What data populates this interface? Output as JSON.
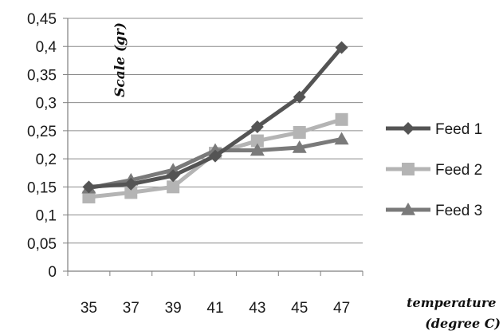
{
  "chart_data": {
    "type": "line",
    "title": "",
    "xlabel": "temperature (degree C)",
    "xlabel_lines": [
      "temperature",
      "(degree C)"
    ],
    "ylabel": "Scale (gr)",
    "x": [
      35,
      37,
      39,
      41,
      43,
      45,
      47
    ],
    "x_tick_labels": [
      "35",
      "37",
      "39",
      "41",
      "43",
      "45",
      "47"
    ],
    "ylim": [
      0,
      0.45
    ],
    "y_ticks": [
      0,
      0.05,
      0.1,
      0.15,
      0.2,
      0.25,
      0.3,
      0.35,
      0.4,
      0.45
    ],
    "y_tick_labels": [
      "0",
      "0,05",
      "0,1",
      "0,15",
      "0,2",
      "0,25",
      "0,3",
      "0,35",
      "0,4",
      "0,45"
    ],
    "grid": "horizontal",
    "legend": "right",
    "series": [
      {
        "name": "Feed 1",
        "marker": "diamond",
        "color": "#545454",
        "values": [
          0.15,
          0.155,
          0.17,
          0.205,
          0.257,
          0.31,
          0.398
        ]
      },
      {
        "name": "Feed 2",
        "marker": "square",
        "color": "#b4b4b4",
        "values": [
          0.132,
          0.14,
          0.15,
          0.21,
          0.232,
          0.247,
          0.27
        ]
      },
      {
        "name": "Feed 3",
        "marker": "triangle",
        "color": "#7a7a7a",
        "values": [
          0.148,
          0.162,
          0.18,
          0.215,
          0.215,
          0.22,
          0.235
        ]
      }
    ]
  }
}
